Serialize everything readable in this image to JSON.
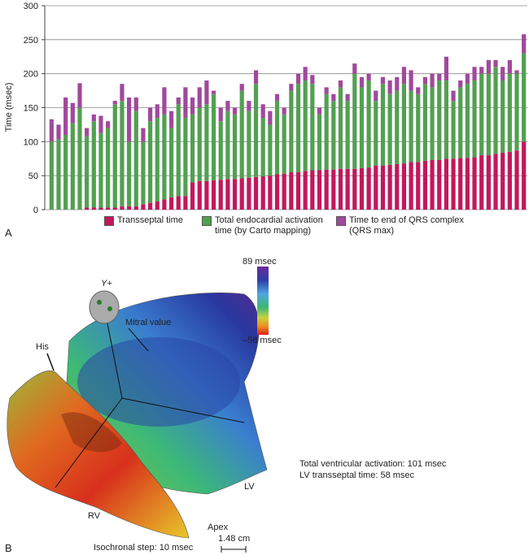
{
  "chart_data": {
    "type": "bar",
    "stacked": true,
    "ylabel": "Time (msec)",
    "panel_label": "A",
    "ylim": [
      0,
      300
    ],
    "yticks": [
      0,
      50,
      100,
      150,
      200,
      250,
      300
    ],
    "grid": true,
    "series": [
      {
        "name": "Transseptal time",
        "color": "#c2185b",
        "values": [
          0,
          0,
          0,
          0,
          0,
          3,
          3,
          3,
          3,
          3,
          5,
          5,
          5,
          8,
          10,
          12,
          15,
          18,
          20,
          20,
          40,
          42,
          42,
          43,
          44,
          45,
          45,
          46,
          47,
          48,
          49,
          50,
          52,
          53,
          55,
          55,
          57,
          58,
          58,
          59,
          59,
          60,
          60,
          60,
          61,
          62,
          65,
          65,
          66,
          67,
          68,
          70,
          70,
          72,
          73,
          73,
          75,
          75,
          76,
          76,
          77,
          80,
          80,
          82,
          84,
          85,
          87,
          100
        ]
      },
      {
        "name": "Total endocardial activation time (by Carto mapping)",
        "color": "#52a052",
        "values": [
          100,
          103,
          110,
          127,
          150,
          105,
          127,
          110,
          117,
          152,
          155,
          95,
          140,
          92,
          120,
          123,
          125,
          102,
          135,
          115,
          100,
          108,
          113,
          127,
          86,
          100,
          95,
          129,
          98,
          137,
          86,
          75,
          108,
          87,
          120,
          130,
          133,
          127,
          82,
          111,
          101,
          120,
          100,
          140,
          119,
          128,
          95,
          120,
          104,
          108,
          117,
          105,
          100,
          113,
          107,
          117,
          115,
          85,
          104,
          109,
          113,
          120,
          120,
          128,
          106,
          115,
          113,
          130
        ]
      },
      {
        "name": "Time to end of QRS complex (QRS max)",
        "color": "#a0499c",
        "values": [
          33,
          22,
          55,
          30,
          36,
          12,
          10,
          25,
          10,
          5,
          25,
          65,
          20,
          20,
          20,
          20,
          40,
          25,
          10,
          45,
          25,
          30,
          35,
          5,
          20,
          15,
          10,
          10,
          15,
          20,
          20,
          20,
          10,
          10,
          10,
          15,
          20,
          13,
          10,
          10,
          10,
          10,
          10,
          15,
          15,
          10,
          15,
          10,
          20,
          20,
          25,
          30,
          10,
          10,
          20,
          10,
          35,
          15,
          10,
          15,
          20,
          10,
          20,
          10,
          20,
          20,
          5,
          28
        ]
      }
    ]
  },
  "map": {
    "panel_label": "B",
    "scale_max": "89 msec",
    "scale_min": "–58 msec",
    "axis_label": "Y+",
    "labels": {
      "mitral": "Mitral value",
      "his": "His",
      "rv": "RV",
      "lv": "LV",
      "apex": "Apex"
    },
    "notes": [
      "Total ventricular activation: 101 msec",
      "LV transseptal time: 58 msec"
    ],
    "isochronal_step": "Isochronal step: 10 msec",
    "scale_bar": "1.48 cm"
  }
}
